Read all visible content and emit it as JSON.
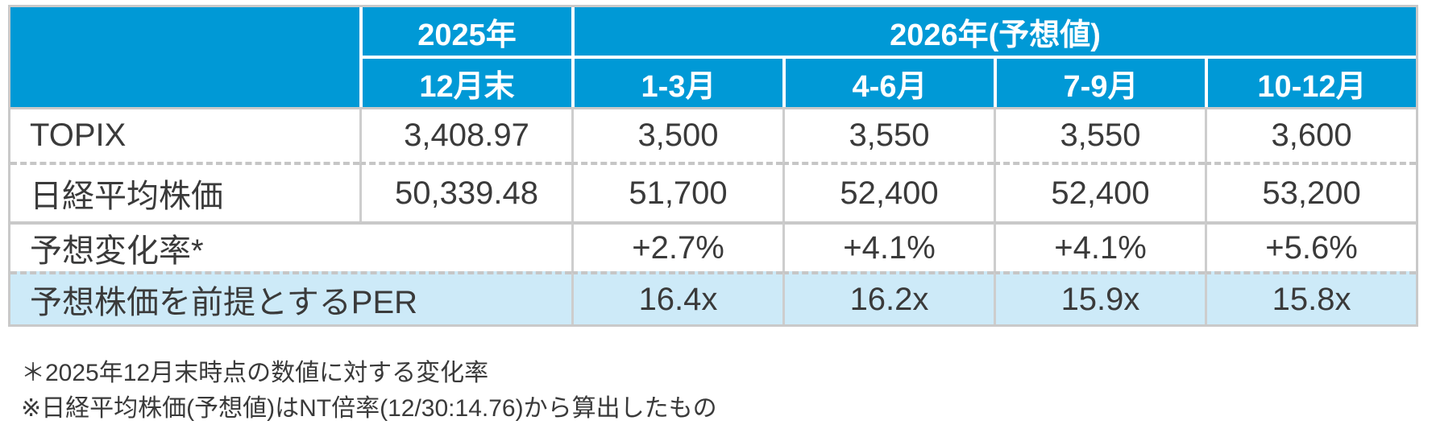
{
  "table": {
    "corner": "",
    "header_2025": "2025年",
    "header_2026": "2026年(予想値)",
    "subheaders": [
      "12月末",
      "1-3月",
      "4-6月",
      "7-9月",
      "10-12月"
    ],
    "rows": [
      {
        "label": "TOPIX",
        "values": [
          "3,408.97",
          "3,500",
          "3,550",
          "3,550",
          "3,600"
        ]
      },
      {
        "label": "日経平均株価",
        "values": [
          "50,339.48",
          "51,700",
          "52,400",
          "52,400",
          "53,200"
        ]
      },
      {
        "label": "予想変化率*",
        "values": [
          "+2.7%",
          "+4.1%",
          "+4.1%",
          "+5.6%"
        ]
      },
      {
        "label": "予想株価を前提とするPER",
        "values": [
          "16.4x",
          "16.2x",
          "15.9x",
          "15.8x"
        ]
      }
    ],
    "footnotes": [
      "＊2025年12月末時点の数値に対する変化率",
      "※日経平均株価(予想値)はNT倍率(12/30:14.76)から算出したもの"
    ]
  },
  "colors": {
    "header_blue": "#0099d6",
    "highlight_row_blue": "#cdeaf8",
    "border_gray": "#c9c9c9",
    "dash_gray": "#c6c6c6",
    "text_dark": "#3a3a3a",
    "header_text": "#ffffff"
  }
}
